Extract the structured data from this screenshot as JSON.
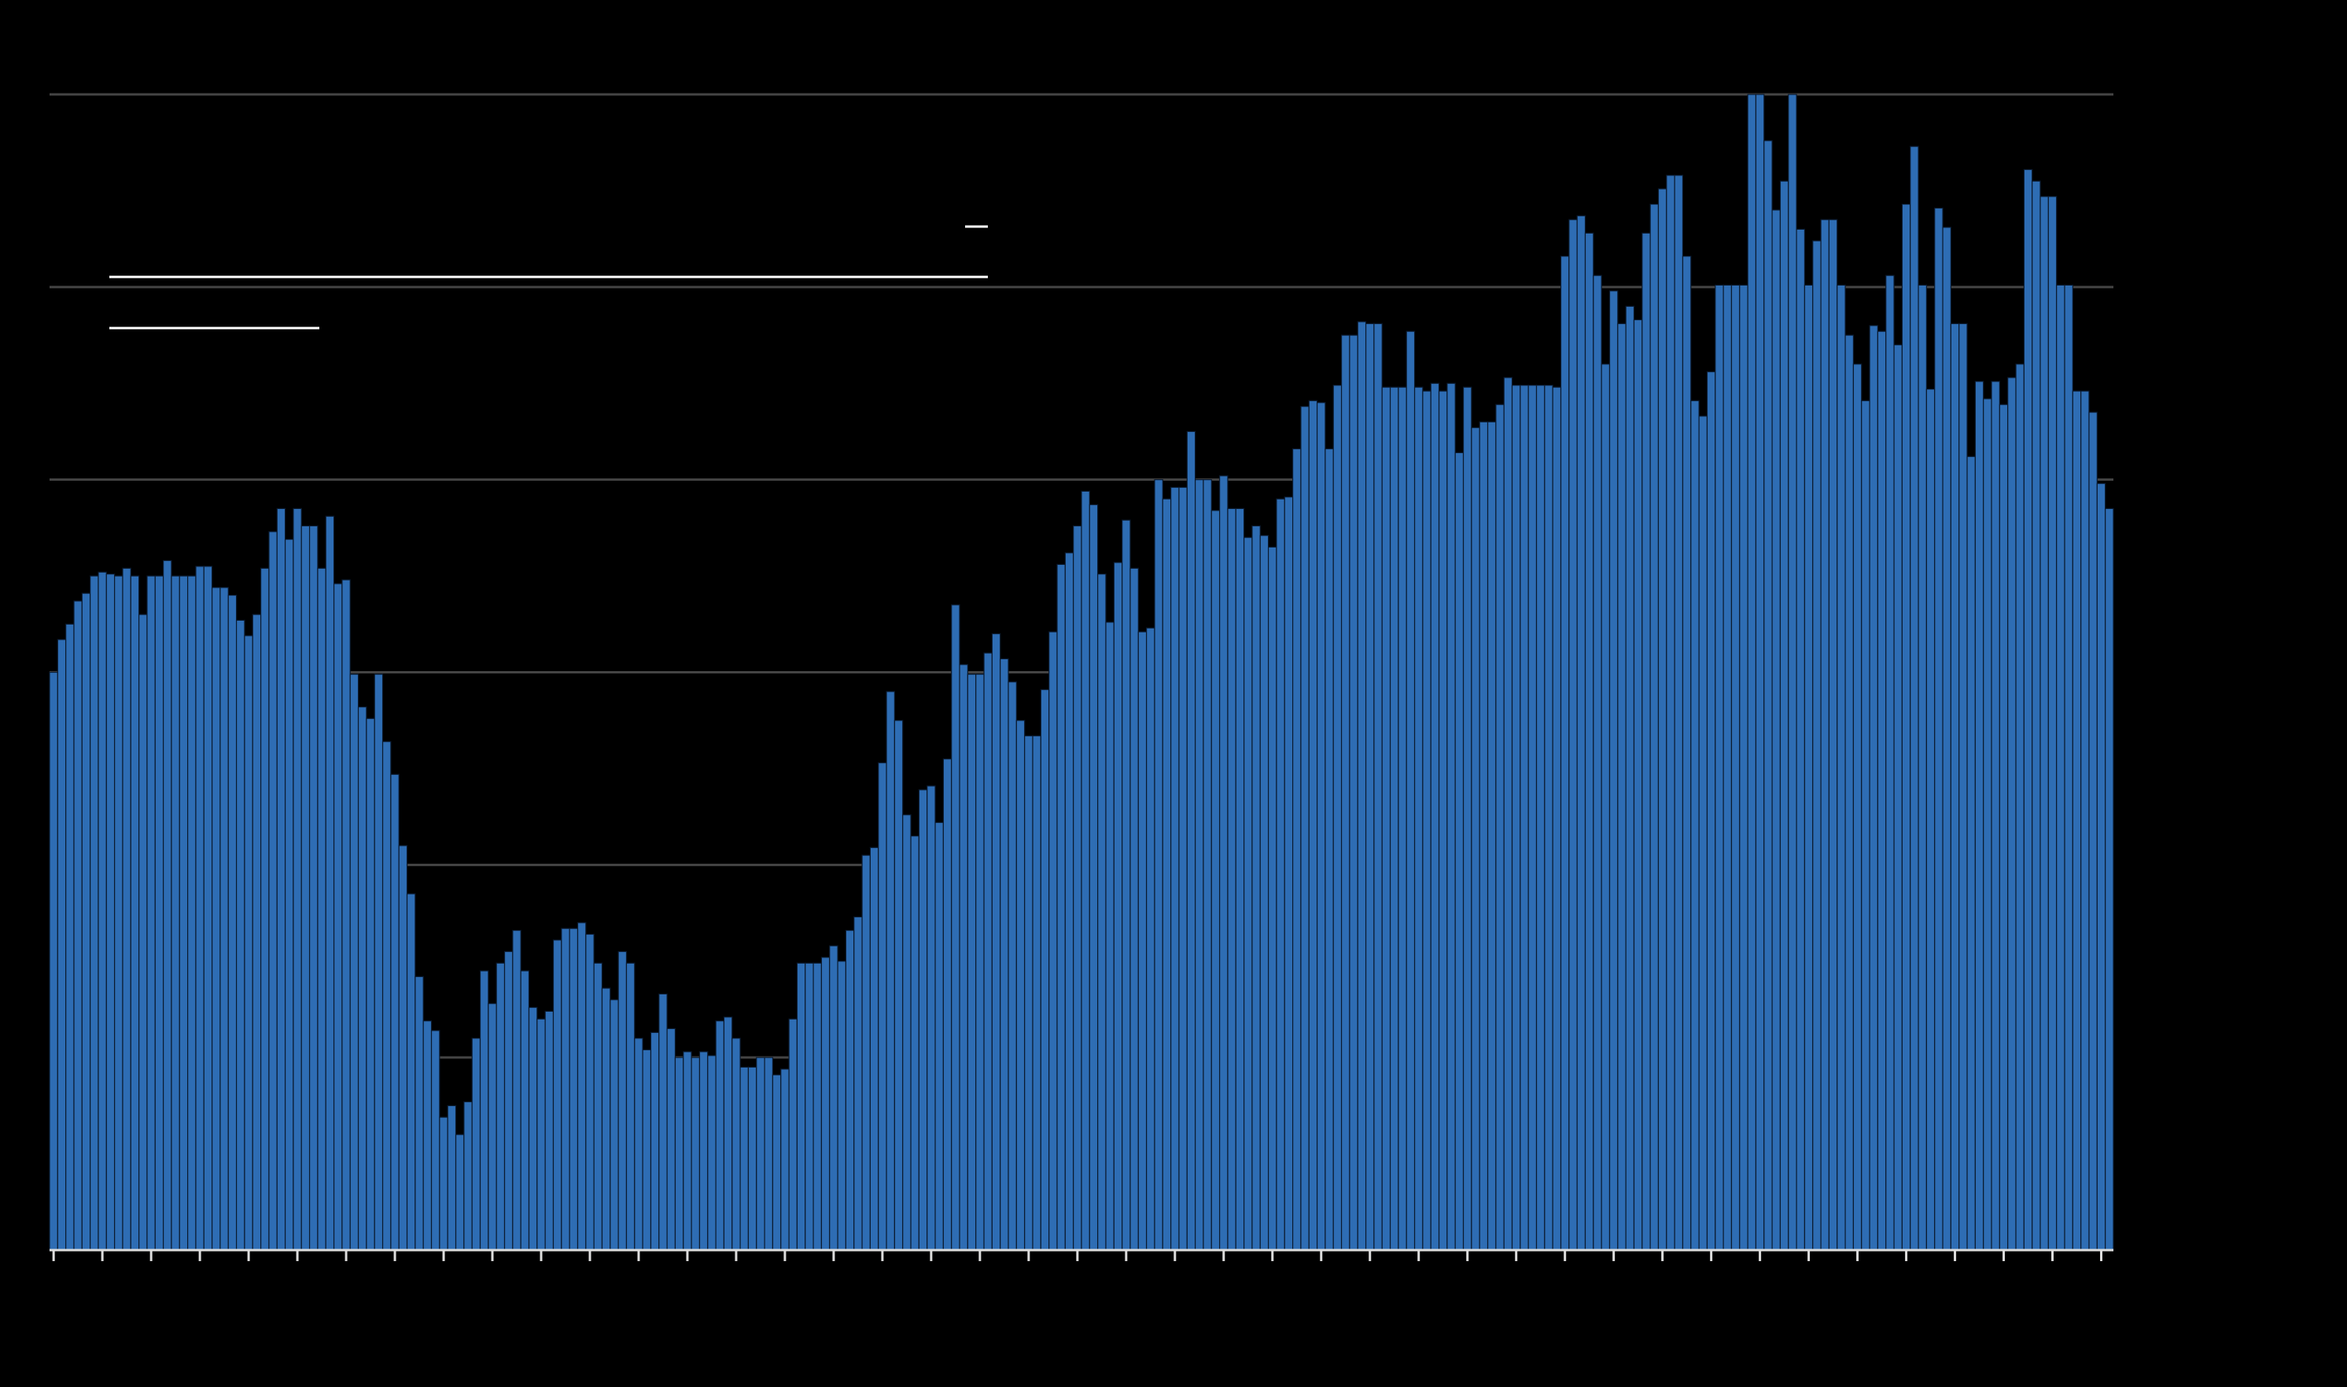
{
  "chart_data": {
    "type": "bar",
    "color": "#2e6db4",
    "grid": true,
    "ylim": [
      0,
      6
    ],
    "yticks": [
      0,
      1,
      2,
      3,
      4,
      5,
      6
    ],
    "categories": [
      null,
      null,
      null,
      null,
      null,
      null,
      null,
      null,
      null,
      null,
      null,
      null,
      null,
      null,
      null,
      null,
      null,
      null,
      null,
      null,
      null,
      null,
      null,
      null,
      null,
      null,
      null,
      null,
      null,
      null,
      null,
      null,
      null,
      null,
      null,
      null,
      null,
      null,
      null,
      null,
      null,
      null,
      null,
      null,
      null,
      null,
      null,
      null,
      null,
      null,
      null,
      null,
      null,
      null,
      null,
      null,
      null,
      null,
      null,
      null,
      null,
      null,
      null,
      null,
      null,
      null,
      null,
      null,
      null,
      null,
      null,
      null,
      null,
      null,
      null,
      null,
      null,
      null,
      null,
      null,
      null,
      null,
      null,
      null,
      null,
      null,
      null,
      null,
      null,
      null,
      null,
      null,
      null,
      null,
      null,
      null,
      null,
      null,
      null,
      null,
      null,
      null,
      null,
      null,
      null,
      null,
      null,
      null,
      null,
      null,
      null,
      null,
      null,
      null,
      null,
      null,
      null,
      null,
      null,
      null,
      null,
      null,
      null,
      null,
      null,
      null,
      null,
      null,
      null,
      null,
      null,
      null,
      null,
      null,
      null,
      null,
      null,
      null,
      null,
      null,
      null,
      null,
      null,
      null,
      null,
      null,
      null,
      null,
      null,
      null,
      null,
      null,
      null,
      null,
      null,
      null,
      null,
      null,
      null,
      null,
      null,
      null,
      null,
      null,
      null,
      null,
      null,
      null,
      null,
      null,
      null,
      null,
      null,
      null,
      null,
      null,
      null,
      null,
      null,
      null,
      null,
      null,
      null,
      null,
      null,
      null,
      null,
      null,
      null,
      null,
      null,
      null,
      null,
      null,
      null,
      null,
      null,
      null,
      null,
      null,
      null,
      null,
      null,
      null,
      null,
      null,
      null,
      null,
      null,
      null,
      null,
      null,
      null,
      null,
      null,
      null,
      null,
      null,
      null,
      null,
      null,
      null,
      null,
      null,
      null,
      null,
      null,
      null,
      null,
      null,
      null,
      null,
      null,
      null,
      null,
      null,
      null,
      null,
      null,
      null,
      null,
      null,
      null,
      null,
      null,
      null,
      null,
      null,
      null,
      null,
      null,
      null,
      null,
      null
    ],
    "values": [
      3.0,
      3.17,
      3.25,
      3.37,
      3.41,
      3.5,
      3.52,
      3.51,
      3.5,
      3.54,
      3.5,
      3.3,
      3.5,
      3.5,
      3.58,
      3.5,
      3.5,
      3.5,
      3.55,
      3.55,
      3.44,
      3.44,
      3.4,
      3.27,
      3.19,
      3.3,
      3.54,
      3.73,
      3.85,
      3.69,
      3.85,
      3.76,
      3.76,
      3.54,
      3.81,
      3.46,
      3.48,
      2.99,
      2.82,
      2.76,
      2.99,
      2.64,
      2.47,
      2.1,
      1.85,
      1.42,
      1.19,
      1.14,
      0.69,
      0.75,
      0.6,
      0.77,
      1.1,
      1.45,
      1.28,
      1.49,
      1.55,
      1.66,
      1.45,
      1.26,
      1.2,
      1.24,
      1.61,
      1.67,
      1.67,
      1.7,
      1.64,
      1.49,
      1.36,
      1.3,
      1.55,
      1.49,
      1.1,
      1.04,
      1.13,
      1.33,
      1.15,
      1.0,
      1.03,
      1.0,
      1.03,
      1.01,
      1.19,
      1.21,
      1.1,
      0.95,
      0.95,
      1.0,
      1.0,
      0.91,
      0.94,
      1.2,
      1.49,
      1.49,
      1.49,
      1.52,
      1.58,
      1.5,
      1.66,
      1.73,
      2.05,
      2.09,
      2.53,
      2.9,
      2.75,
      2.26,
      2.15,
      2.39,
      2.41,
      2.22,
      2.55,
      3.35,
      3.04,
      2.99,
      2.99,
      3.1,
      3.2,
      3.07,
      2.95,
      2.75,
      2.67,
      2.67,
      2.91,
      3.21,
      3.56,
      3.62,
      3.76,
      3.94,
      3.87,
      3.51,
      3.26,
      3.57,
      3.79,
      3.54,
      3.21,
      3.23,
      4.0,
      3.9,
      3.96,
      3.96,
      4.25,
      4.0,
      4.0,
      3.84,
      4.02,
      3.85,
      3.85,
      3.7,
      3.76,
      3.71,
      3.65,
      3.9,
      3.91,
      4.16,
      4.38,
      4.41,
      4.4,
      4.16,
      4.49,
      4.75,
      4.75,
      4.82,
      4.81,
      4.81,
      4.48,
      4.48,
      4.48,
      4.77,
      4.48,
      4.46,
      4.5,
      4.46,
      4.5,
      4.14,
      4.48,
      4.27,
      4.3,
      4.3,
      4.39,
      4.53,
      4.49,
      4.49,
      4.49,
      4.49,
      4.49,
      4.48,
      5.16,
      5.35,
      5.37,
      5.28,
      5.06,
      4.6,
      4.98,
      4.81,
      4.9,
      4.83,
      5.28,
      5.43,
      5.51,
      5.58,
      5.58,
      5.16,
      4.41,
      4.33,
      4.56,
      5.01,
      5.01,
      5.01,
      5.01,
      6.0,
      6.0,
      5.76,
      5.4,
      5.55,
      6.0,
      5.3,
      5.01,
      5.24,
      5.35,
      5.35,
      5.01,
      4.75,
      4.6,
      4.41,
      4.8,
      4.77,
      5.06,
      4.7,
      5.43,
      5.73,
      5.01,
      4.47,
      5.41,
      5.31,
      4.81,
      4.81,
      4.12,
      4.51,
      4.42,
      4.51,
      4.39,
      4.53,
      4.6,
      5.61,
      5.55,
      5.47,
      5.47,
      5.01,
      5.01,
      4.46,
      4.46,
      4.35,
      3.98,
      3.85
    ]
  }
}
